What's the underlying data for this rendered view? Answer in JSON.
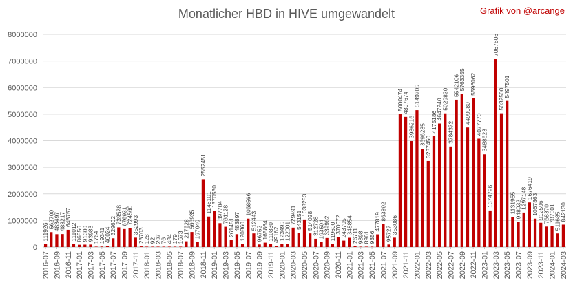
{
  "credit": "Grafik von @arcange",
  "chart_data": {
    "type": "bar",
    "title": "Monatlicher HBD in HIVE umgewandelt",
    "xlabel": "",
    "ylabel": "",
    "ylim": [
      0,
      8000000
    ],
    "yticks": [
      "0",
      "1000000",
      "2000000",
      "3000000",
      "4000000",
      "5000000",
      "6000000",
      "7000000",
      "8000000"
    ],
    "grid": true,
    "legend": "none",
    "bar_color": "#c00000",
    "categories": [
      "2016-07",
      "2016-08",
      "2016-09",
      "2016-10",
      "2016-11",
      "2016-12",
      "2017-01",
      "2017-02",
      "2017-03",
      "2017-04",
      "2017-05",
      "2017-06",
      "2017-07",
      "2017-08",
      "2017-09",
      "2017-10",
      "2017-11",
      "2017-12",
      "2018-01",
      "2018-02",
      "2018-03",
      "2018-04",
      "2018-05",
      "2018-06",
      "2018-07",
      "2018-08",
      "2018-09",
      "2018-10",
      "2018-11",
      "2018-12",
      "2019-01",
      "2019-02",
      "2019-03",
      "2019-04",
      "2019-05",
      "2019-06",
      "2019-07",
      "2019-08",
      "2019-09",
      "2019-10",
      "2019-11",
      "2019-12",
      "2020-01",
      "2020-02",
      "2020-03",
      "2020-04",
      "2020-05",
      "2020-06",
      "2020-07",
      "2020-08",
      "2020-09",
      "2020-10",
      "2020-11",
      "2020-12",
      "2021-01",
      "2021-02",
      "2021-03",
      "2021-04",
      "2021-05",
      "2021-06",
      "2021-07",
      "2021-08",
      "2021-09",
      "2021-10",
      "2021-11",
      "2021-12",
      "2022-01",
      "2022-02",
      "2022-03",
      "2022-04",
      "2022-05",
      "2022-06",
      "2022-07",
      "2022-08",
      "2022-09",
      "2022-10",
      "2022-11",
      "2022-12",
      "2023-01",
      "2023-02",
      "2023-03",
      "2023-04",
      "2023-05",
      "2023-06",
      "2023-07",
      "2023-08",
      "2023-09",
      "2023-10",
      "2023-11",
      "2023-12",
      "2024-01",
      "2024-02",
      "2024-03"
    ],
    "values": [
      111926,
      562700,
      483497,
      488217,
      648757,
      111012,
      86556,
      91300,
      93983,
      1764,
      19341,
      46024,
      329602,
      739528,
      676931,
      724560,
      352993,
      23703,
      128,
      92,
      207,
      76,
      484,
      179,
      1673,
      217628,
      566935,
      197040,
      2552451,
      1146101,
      1370530,
      897704,
      761128,
      261451,
      483897,
      120860,
      1068566,
      512443,
      96752,
      165864,
      110830,
      49162,
      123495,
      122001,
      729491,
      543151,
      1038253,
      514028,
      312728,
      193504,
      339962,
      119600,
      370072,
      243795,
      348854,
      26711,
      9898,
      8961,
      9356,
      477819,
      863892,
      95727,
      353086,
      5000474,
      4897674,
      3986216,
      5149705,
      3696285,
      3237450,
      4175186,
      4647240,
      5029830,
      3784372,
      5542106,
      5763355,
      4499080,
      5596062,
      4077770,
      3488623,
      1374796,
      7067606,
      5032500,
      5497501,
      1131955,
      948032,
      1297148,
      1676419,
      1067863,
      912596,
      768370,
      787001,
      511685,
      842130
    ],
    "value_labels": [
      "111926",
      "562700",
      "483497",
      "488217",
      "648757",
      "111012",
      "86556",
      "91300",
      "93983",
      "1764",
      "19341",
      "46024",
      "329602",
      "739528",
      "676931",
      "724560",
      "352993",
      "23703",
      "128",
      "92",
      "207",
      "76",
      "484",
      "179",
      "1673",
      "217628",
      "566935",
      "197040",
      "2552451",
      "1146101",
      "1370530",
      "897704",
      "761128",
      "261451",
      "483897",
      "120860",
      "1068566",
      "512443",
      "96752",
      "165864",
      "110830",
      "49162",
      "123495",
      "122001",
      "729491",
      "543151",
      "1038253",
      "514028",
      "312728",
      "193504",
      "339962",
      "119600",
      "370072",
      "243795",
      "348854",
      "26711",
      "9898",
      "8961",
      "9356",
      "477819",
      "863892",
      "95727",
      "353086",
      "5000474",
      "4897674",
      "3986216",
      "5149705",
      "3696285",
      "3237450",
      "4175186",
      "4647240",
      "5029830",
      "3784372",
      "5542106",
      "5763355",
      "4499080",
      "5596062",
      "4077770",
      "3488623",
      "1374796",
      "7067606",
      "5032500",
      "5497501",
      "1131955",
      "948032",
      "1297148",
      "1676419",
      "1067863",
      "912596",
      "768370",
      "787001",
      "511685",
      "842130"
    ],
    "shown_xtick_labels": [
      "2016-07",
      "2016-09",
      "2016-11",
      "2017-01",
      "2017-03",
      "2017-05",
      "2017-07",
      "2017-09",
      "2017-11",
      "2018-01",
      "2018-03",
      "2018-05",
      "2018-07",
      "2018-09",
      "2018-11",
      "2019-01",
      "2019-03",
      "2019-05",
      "2019-07",
      "2019-09",
      "2019-11",
      "2020-01",
      "2020-03",
      "2020-05",
      "2020-07",
      "2020-09",
      "2020-11",
      "2021-01",
      "2021-03",
      "2021-05",
      "2021-07",
      "2021-09",
      "2021-11",
      "2022-01",
      "2022-03",
      "2022-05",
      "2022-07",
      "2022-09",
      "2022-11",
      "2023-01",
      "2023-03",
      "2023-05",
      "2023-07",
      "2023-09",
      "2023-11",
      "2024-01",
      "2024-03"
    ]
  }
}
